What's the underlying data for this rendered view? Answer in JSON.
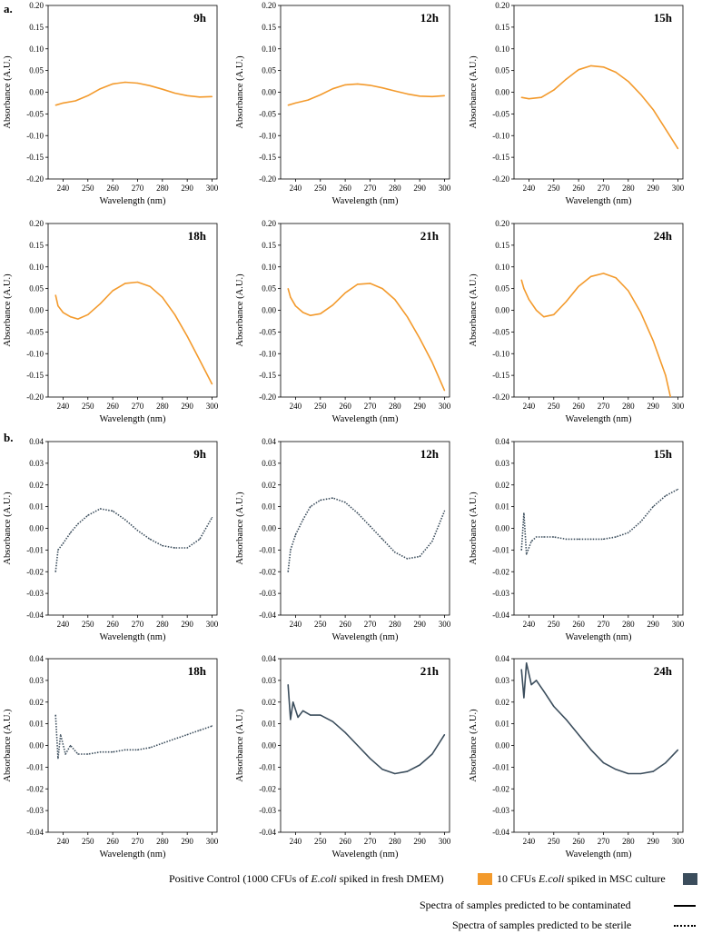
{
  "panel_labels": {
    "a": "a.",
    "b": "b."
  },
  "axis_text": {
    "xlabel": "Wavelength (nm)",
    "ylabel": "Absorbance (A.U.)"
  },
  "colors": {
    "orange": "#f39a2c",
    "slate": "#3b4d5c"
  },
  "legend": {
    "positive_control": {
      "prefix": "Positive Control (1000 CFUs of ",
      "italic": "E.coli",
      "suffix": " spiked in fresh DMEM)"
    },
    "msc": {
      "prefix": "10 CFUs ",
      "italic": "E.coli",
      "suffix": " spiked in MSC culture"
    },
    "contaminated": "Spectra of samples predicted to be contaminated",
    "sterile": "Spectra of samples predicted to be sterile"
  },
  "chart_data": [
    {
      "type": "line",
      "title": "9h",
      "group": "a",
      "color": "orange",
      "style": "solid",
      "xlabel": "Wavelength (nm)",
      "ylabel": "Absorbance (A.U.)",
      "xlim": [
        234,
        302
      ],
      "ylim": [
        -0.2,
        0.2
      ],
      "xticks": [
        240,
        250,
        260,
        270,
        280,
        290,
        300
      ],
      "yticks": [
        -0.2,
        -0.15,
        -0.1,
        -0.05,
        0,
        0.05,
        0.1,
        0.15,
        0.2
      ],
      "x": [
        237,
        240,
        245,
        250,
        255,
        260,
        265,
        270,
        275,
        280,
        285,
        290,
        295,
        300
      ],
      "y": [
        -0.03,
        -0.025,
        -0.02,
        -0.008,
        0.008,
        0.019,
        0.023,
        0.021,
        0.015,
        0.007,
        -0.002,
        -0.008,
        -0.011,
        -0.01
      ]
    },
    {
      "type": "line",
      "title": "12h",
      "group": "a",
      "color": "orange",
      "style": "solid",
      "xlabel": "Wavelength (nm)",
      "ylabel": "Absorbance (A.U.)",
      "xlim": [
        234,
        302
      ],
      "ylim": [
        -0.2,
        0.2
      ],
      "xticks": [
        240,
        250,
        260,
        270,
        280,
        290,
        300
      ],
      "yticks": [
        -0.2,
        -0.15,
        -0.1,
        -0.05,
        0,
        0.05,
        0.1,
        0.15,
        0.2
      ],
      "x": [
        237,
        240,
        245,
        250,
        255,
        260,
        265,
        270,
        275,
        280,
        285,
        290,
        295,
        300
      ],
      "y": [
        -0.03,
        -0.025,
        -0.018,
        -0.006,
        0.008,
        0.017,
        0.019,
        0.016,
        0.01,
        0.003,
        -0.004,
        -0.009,
        -0.01,
        -0.008
      ]
    },
    {
      "type": "line",
      "title": "15h",
      "group": "a",
      "color": "orange",
      "style": "solid",
      "xlabel": "Wavelength (nm)",
      "ylabel": "Absorbance (A.U.)",
      "xlim": [
        234,
        302
      ],
      "ylim": [
        -0.2,
        0.2
      ],
      "xticks": [
        240,
        250,
        260,
        270,
        280,
        290,
        300
      ],
      "yticks": [
        -0.2,
        -0.15,
        -0.1,
        -0.05,
        0,
        0.05,
        0.1,
        0.15,
        0.2
      ],
      "x": [
        237,
        240,
        245,
        250,
        255,
        260,
        265,
        270,
        275,
        280,
        285,
        290,
        295,
        300
      ],
      "y": [
        -0.012,
        -0.015,
        -0.012,
        0.005,
        0.03,
        0.052,
        0.061,
        0.058,
        0.046,
        0.025,
        -0.005,
        -0.04,
        -0.085,
        -0.13
      ]
    },
    {
      "type": "line",
      "title": "18h",
      "group": "a",
      "color": "orange",
      "style": "solid",
      "xlabel": "Wavelength (nm)",
      "ylabel": "Absorbance (A.U.)",
      "xlim": [
        234,
        302
      ],
      "ylim": [
        -0.2,
        0.2
      ],
      "xticks": [
        240,
        250,
        260,
        270,
        280,
        290,
        300
      ],
      "yticks": [
        -0.2,
        -0.15,
        -0.1,
        -0.05,
        0,
        0.05,
        0.1,
        0.15,
        0.2
      ],
      "x": [
        237,
        238,
        240,
        243,
        246,
        250,
        255,
        260,
        265,
        270,
        275,
        280,
        285,
        290,
        295,
        300
      ],
      "y": [
        0.035,
        0.01,
        -0.005,
        -0.015,
        -0.02,
        -0.01,
        0.015,
        0.045,
        0.062,
        0.065,
        0.055,
        0.03,
        -0.01,
        -0.06,
        -0.115,
        -0.17
      ]
    },
    {
      "type": "line",
      "title": "21h",
      "group": "a",
      "color": "orange",
      "style": "solid",
      "xlabel": "Wavelength (nm)",
      "ylabel": "Absorbance (A.U.)",
      "xlim": [
        234,
        302
      ],
      "ylim": [
        -0.2,
        0.2
      ],
      "xticks": [
        240,
        250,
        260,
        270,
        280,
        290,
        300
      ],
      "yticks": [
        -0.2,
        -0.15,
        -0.1,
        -0.05,
        0,
        0.05,
        0.1,
        0.15,
        0.2
      ],
      "x": [
        237,
        238,
        240,
        243,
        246,
        250,
        255,
        260,
        265,
        270,
        275,
        280,
        285,
        290,
        295,
        300
      ],
      "y": [
        0.05,
        0.03,
        0.01,
        -0.005,
        -0.012,
        -0.008,
        0.012,
        0.04,
        0.06,
        0.062,
        0.05,
        0.025,
        -0.015,
        -0.065,
        -0.12,
        -0.185
      ]
    },
    {
      "type": "line",
      "title": "24h",
      "group": "a",
      "color": "orange",
      "style": "solid",
      "xlabel": "Wavelength (nm)",
      "ylabel": "Absorbance (A.U.)",
      "xlim": [
        234,
        302
      ],
      "ylim": [
        -0.2,
        0.2
      ],
      "xticks": [
        240,
        250,
        260,
        270,
        280,
        290,
        300
      ],
      "yticks": [
        -0.2,
        -0.15,
        -0.1,
        -0.05,
        0,
        0.05,
        0.1,
        0.15,
        0.2
      ],
      "x": [
        237,
        238,
        240,
        243,
        246,
        250,
        255,
        260,
        265,
        270,
        275,
        280,
        285,
        290,
        295,
        297
      ],
      "y": [
        0.07,
        0.05,
        0.025,
        0.0,
        -0.015,
        -0.01,
        0.02,
        0.055,
        0.078,
        0.085,
        0.075,
        0.045,
        -0.005,
        -0.07,
        -0.15,
        -0.2
      ]
    },
    {
      "type": "line",
      "title": "9h",
      "group": "b",
      "color": "slate",
      "style": "dotted",
      "xlabel": "Wavelength (nm)",
      "ylabel": "Absorbance (A.U.)",
      "xlim": [
        234,
        302
      ],
      "ylim": [
        -0.04,
        0.04
      ],
      "xticks": [
        240,
        250,
        260,
        270,
        280,
        290,
        300
      ],
      "yticks": [
        -0.04,
        -0.03,
        -0.02,
        -0.01,
        0,
        0.01,
        0.02,
        0.03,
        0.04
      ],
      "x": [
        237,
        238,
        240,
        243,
        246,
        250,
        255,
        260,
        265,
        270,
        275,
        280,
        285,
        290,
        295,
        300
      ],
      "y": [
        -0.02,
        -0.01,
        -0.007,
        -0.002,
        0.002,
        0.006,
        0.009,
        0.008,
        0.004,
        -0.001,
        -0.005,
        -0.008,
        -0.009,
        -0.009,
        -0.005,
        0.005
      ]
    },
    {
      "type": "line",
      "title": "12h",
      "group": "b",
      "color": "slate",
      "style": "dotted",
      "xlabel": "Wavelength (nm)",
      "ylabel": "Absorbance (A.U.)",
      "xlim": [
        234,
        302
      ],
      "ylim": [
        -0.04,
        0.04
      ],
      "xticks": [
        240,
        250,
        260,
        270,
        280,
        290,
        300
      ],
      "yticks": [
        -0.04,
        -0.03,
        -0.02,
        -0.01,
        0,
        0.01,
        0.02,
        0.03,
        0.04
      ],
      "x": [
        237,
        238,
        240,
        243,
        246,
        250,
        255,
        260,
        265,
        270,
        275,
        280,
        285,
        290,
        295,
        300
      ],
      "y": [
        -0.02,
        -0.01,
        -0.003,
        0.004,
        0.01,
        0.013,
        0.014,
        0.012,
        0.007,
        0.001,
        -0.005,
        -0.011,
        -0.014,
        -0.013,
        -0.006,
        0.008
      ]
    },
    {
      "type": "line",
      "title": "15h",
      "group": "b",
      "color": "slate",
      "style": "dotted",
      "xlabel": "Wavelength (nm)",
      "ylabel": "Absorbance (A.U.)",
      "xlim": [
        234,
        302
      ],
      "ylim": [
        -0.04,
        0.04
      ],
      "xticks": [
        240,
        250,
        260,
        270,
        280,
        290,
        300
      ],
      "yticks": [
        -0.04,
        -0.03,
        -0.02,
        -0.01,
        0,
        0.01,
        0.02,
        0.03,
        0.04
      ],
      "x": [
        237,
        238,
        239,
        241,
        243,
        246,
        250,
        255,
        260,
        265,
        270,
        275,
        280,
        285,
        290,
        295,
        300
      ],
      "y": [
        -0.01,
        0.007,
        -0.012,
        -0.006,
        -0.004,
        -0.004,
        -0.004,
        -0.005,
        -0.005,
        -0.005,
        -0.005,
        -0.004,
        -0.002,
        0.003,
        0.01,
        0.015,
        0.018
      ]
    },
    {
      "type": "line",
      "title": "18h",
      "group": "b",
      "color": "slate",
      "style": "dotted",
      "xlabel": "Wavelength (nm)",
      "ylabel": "Absorbance (A.U.)",
      "xlim": [
        234,
        302
      ],
      "ylim": [
        -0.04,
        0.04
      ],
      "xticks": [
        240,
        250,
        260,
        270,
        280,
        290,
        300
      ],
      "yticks": [
        -0.04,
        -0.03,
        -0.02,
        -0.01,
        0,
        0.01,
        0.02,
        0.03,
        0.04
      ],
      "x": [
        237,
        238,
        239,
        241,
        243,
        246,
        250,
        255,
        260,
        265,
        270,
        275,
        280,
        285,
        290,
        295,
        300
      ],
      "y": [
        0.014,
        -0.006,
        0.005,
        -0.004,
        0.0,
        -0.004,
        -0.004,
        -0.003,
        -0.003,
        -0.002,
        -0.002,
        -0.001,
        0.001,
        0.003,
        0.005,
        0.007,
        0.009
      ]
    },
    {
      "type": "line",
      "title": "21h",
      "group": "b",
      "color": "slate",
      "style": "solid",
      "xlabel": "Wavelength (nm)",
      "ylabel": "Absorbance (A.U.)",
      "xlim": [
        234,
        302
      ],
      "ylim": [
        -0.04,
        0.04
      ],
      "xticks": [
        240,
        250,
        260,
        270,
        280,
        290,
        300
      ],
      "yticks": [
        -0.04,
        -0.03,
        -0.02,
        -0.01,
        0,
        0.01,
        0.02,
        0.03,
        0.04
      ],
      "x": [
        237,
        238,
        239,
        241,
        243,
        246,
        250,
        255,
        260,
        265,
        270,
        275,
        280,
        285,
        290,
        295,
        300
      ],
      "y": [
        0.028,
        0.012,
        0.02,
        0.013,
        0.016,
        0.014,
        0.014,
        0.011,
        0.006,
        0.0,
        -0.006,
        -0.011,
        -0.013,
        -0.012,
        -0.009,
        -0.004,
        0.005
      ]
    },
    {
      "type": "line",
      "title": "24h",
      "group": "b",
      "color": "slate",
      "style": "solid",
      "xlabel": "Wavelength (nm)",
      "ylabel": "Absorbance (A.U.)",
      "xlim": [
        234,
        302
      ],
      "ylim": [
        -0.04,
        0.04
      ],
      "xticks": [
        240,
        250,
        260,
        270,
        280,
        290,
        300
      ],
      "yticks": [
        -0.04,
        -0.03,
        -0.02,
        -0.01,
        0,
        0.01,
        0.02,
        0.03,
        0.04
      ],
      "x": [
        237,
        238,
        239,
        241,
        243,
        246,
        250,
        255,
        260,
        265,
        270,
        275,
        280,
        285,
        290,
        295,
        300
      ],
      "y": [
        0.035,
        0.022,
        0.038,
        0.028,
        0.03,
        0.025,
        0.018,
        0.012,
        0.005,
        -0.002,
        -0.008,
        -0.011,
        -0.013,
        -0.013,
        -0.012,
        -0.008,
        -0.002
      ]
    }
  ]
}
